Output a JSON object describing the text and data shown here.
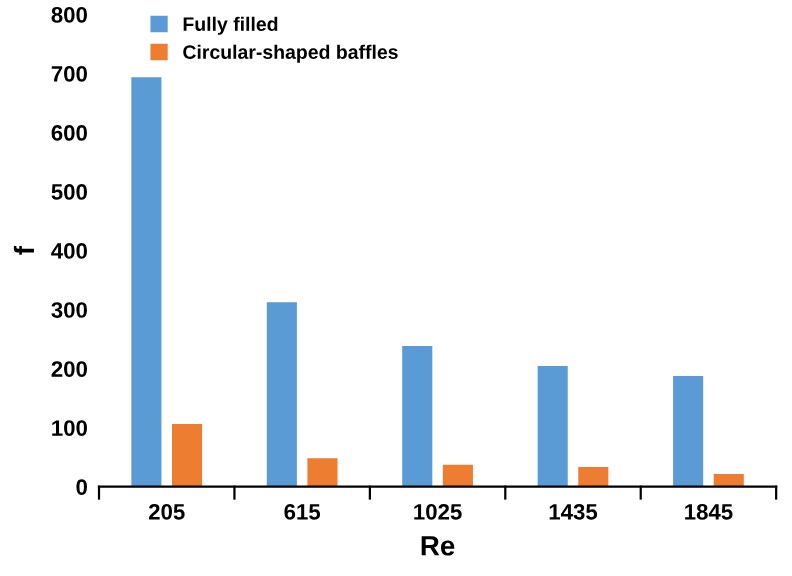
{
  "chart_data": {
    "type": "bar",
    "xlabel": "Re",
    "ylabel": "f",
    "categories": [
      "205",
      "615",
      "1025",
      "1435",
      "1845"
    ],
    "series": [
      {
        "name": "Fully filled",
        "color": "#5b9bd5",
        "values": [
          692,
          311,
          237,
          203,
          186
        ]
      },
      {
        "name": "Circular-shaped baffles",
        "color": "#ed7d31",
        "values": [
          105,
          47,
          36,
          32,
          20
        ]
      }
    ],
    "ylim": [
      0,
      800
    ],
    "yticks": [
      0,
      100,
      200,
      300,
      400,
      500,
      600,
      700,
      800
    ],
    "grid": false,
    "legend": "top left"
  }
}
